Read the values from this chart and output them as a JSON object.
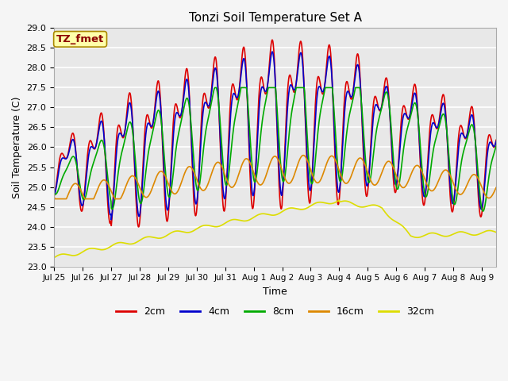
{
  "title": "Tonzi Soil Temperature Set A",
  "xlabel": "Time",
  "ylabel": "Soil Temperature (C)",
  "annotation": "TZ_fmet",
  "ylim": [
    23.0,
    29.0
  ],
  "yticks": [
    23.0,
    23.5,
    24.0,
    24.5,
    25.0,
    25.5,
    26.0,
    26.5,
    27.0,
    27.5,
    28.0,
    28.5,
    29.0
  ],
  "xtick_labels": [
    "Jul 25",
    "Jul 26",
    "Jul 27",
    "Jul 28",
    "Jul 29",
    "Jul 30",
    "Jul 31",
    "Aug 1",
    "Aug 2",
    "Aug 3",
    "Aug 4",
    "Aug 5",
    "Aug 6",
    "Aug 7",
    "Aug 8",
    "Aug 9"
  ],
  "legend_labels": [
    "2cm",
    "4cm",
    "8cm",
    "16cm",
    "32cm"
  ],
  "line_colors": [
    "#dd0000",
    "#0000cc",
    "#00aa00",
    "#dd8800",
    "#dddd00"
  ],
  "line_width": 1.2,
  "plot_bg_color": "#e8e8e8",
  "fig_bg_color": "#f5f5f5",
  "total_days": 15.5,
  "n_points": 1500
}
